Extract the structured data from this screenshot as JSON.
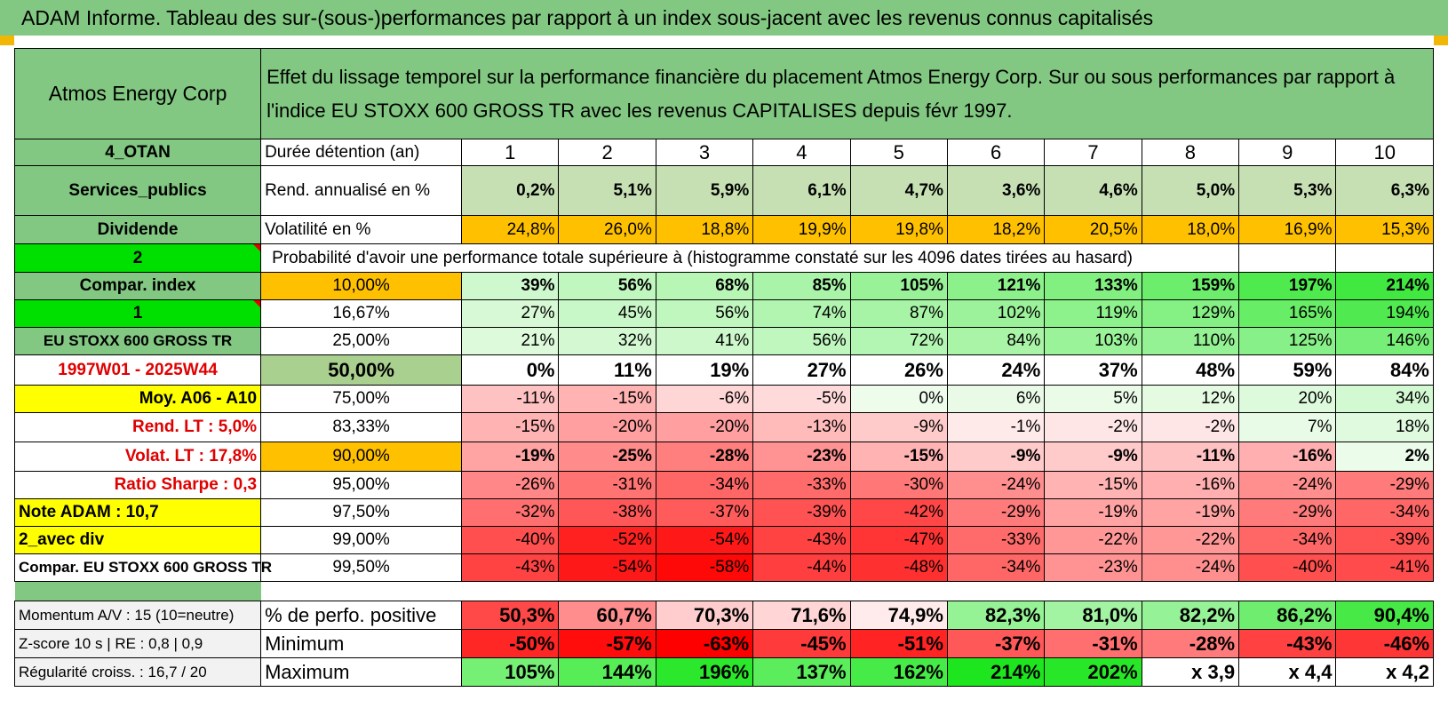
{
  "title": "ADAM Informe. Tableau des sur-(sous-)performances par rapport à un index sous-jacent avec les revenus connus capitalisés",
  "header": {
    "company": "Atmos Energy Corp",
    "description": "Effet du lissage temporel sur la performance financière du placement Atmos Energy Corp. Sur ou sous performances par rapport à l'indice EU STOXX 600 GROSS TR avec les revenus CAPITALISES depuis févr 1997."
  },
  "durations": {
    "side": "4_OTAN",
    "label": "Durée détention (an)",
    "values": [
      "1",
      "2",
      "3",
      "4",
      "5",
      "6",
      "7",
      "8",
      "9",
      "10"
    ]
  },
  "rendement": {
    "side": "Services_publics",
    "label": "Rend. annualisé en %",
    "values": [
      "0,2%",
      "5,1%",
      "5,9%",
      "6,1%",
      "4,7%",
      "3,6%",
      "4,6%",
      "5,0%",
      "5,3%",
      "6,3%"
    ]
  },
  "volatilite": {
    "side": "Dividende",
    "label": "Volatilité en %",
    "values": [
      "24,8%",
      "26,0%",
      "18,8%",
      "19,9%",
      "19,8%",
      "18,2%",
      "20,5%",
      "18,0%",
      "16,9%",
      "15,3%"
    ]
  },
  "probability": {
    "side": "2",
    "label": "Probabilité d'avoir une performance totale supérieure à (histogramme constaté sur les 4096 dates tirées au hasard)"
  },
  "perf_rows": [
    {
      "side": "Compar. index",
      "pct": "10,00%",
      "values": [
        "39%",
        "56%",
        "68%",
        "85%",
        "105%",
        "121%",
        "133%",
        "159%",
        "197%",
        "214%"
      ]
    },
    {
      "side": "1",
      "pct": "16,67%",
      "values": [
        "27%",
        "45%",
        "56%",
        "74%",
        "87%",
        "102%",
        "119%",
        "129%",
        "165%",
        "194%"
      ]
    },
    {
      "side": "EU STOXX 600 GROSS TR",
      "pct": "25,00%",
      "values": [
        "21%",
        "32%",
        "41%",
        "56%",
        "72%",
        "84%",
        "103%",
        "110%",
        "125%",
        "146%"
      ]
    },
    {
      "side": "1997W01 - 2025W44",
      "pct": "50,00%",
      "values": [
        "0%",
        "11%",
        "19%",
        "27%",
        "26%",
        "24%",
        "37%",
        "48%",
        "59%",
        "84%"
      ]
    },
    {
      "side": "Moy. A06 - A10",
      "pct": "75,00%",
      "values": [
        "-11%",
        "-15%",
        "-6%",
        "-5%",
        "0%",
        "6%",
        "5%",
        "12%",
        "20%",
        "34%"
      ]
    },
    {
      "side": "Rend. LT :    5,0%",
      "pct": "83,33%",
      "values": [
        "-15%",
        "-20%",
        "-20%",
        "-13%",
        "-9%",
        "-1%",
        "-2%",
        "-2%",
        "7%",
        "18%"
      ]
    },
    {
      "side": "Volat. LT :    17,8%",
      "pct": "90,00%",
      "values": [
        "-19%",
        "-25%",
        "-28%",
        "-23%",
        "-15%",
        "-9%",
        "-9%",
        "-11%",
        "-16%",
        "2%"
      ]
    },
    {
      "side": "Ratio Sharpe :     0,3",
      "pct": "95,00%",
      "values": [
        "-26%",
        "-31%",
        "-34%",
        "-33%",
        "-30%",
        "-24%",
        "-15%",
        "-16%",
        "-24%",
        "-29%"
      ]
    },
    {
      "side": "Note ADAM : 10,7",
      "pct": "97,50%",
      "values": [
        "-32%",
        "-38%",
        "-37%",
        "-39%",
        "-42%",
        "-29%",
        "-19%",
        "-19%",
        "-29%",
        "-34%"
      ]
    },
    {
      "side": "2_avec div",
      "pct": "99,00%",
      "values": [
        "-40%",
        "-52%",
        "-54%",
        "-43%",
        "-47%",
        "-33%",
        "-22%",
        "-22%",
        "-34%",
        "-39%"
      ]
    },
    {
      "side": "Compar. EU STOXX 600 GROSS TR",
      "pct": "99,50%",
      "values": [
        "-43%",
        "-54%",
        "-58%",
        "-44%",
        "-48%",
        "-34%",
        "-23%",
        "-24%",
        "-40%",
        "-41%"
      ]
    }
  ],
  "stats": [
    {
      "side": "Momentum A/V : 15 (10=neutre)",
      "label": "% de perfo. positive",
      "values": [
        "50,3%",
        "60,7%",
        "70,3%",
        "71,6%",
        "74,9%",
        "82,3%",
        "81,0%",
        "82,2%",
        "86,2%",
        "90,4%"
      ]
    },
    {
      "side": "Z-score 10 s | RE : 0,8 | 0,9",
      "label": "Minimum",
      "values": [
        "-50%",
        "-57%",
        "-63%",
        "-45%",
        "-51%",
        "-37%",
        "-31%",
        "-28%",
        "-43%",
        "-46%"
      ]
    },
    {
      "side": "Régularité croiss. : 16,7 / 20",
      "label": "Maximum",
      "values": [
        "105%",
        "144%",
        "196%",
        "137%",
        "162%",
        "214%",
        "202%",
        "x 3,9",
        "x 4,4",
        "x 4,2"
      ]
    }
  ],
  "colors": {
    "header_green": "#82c882",
    "bright_green": "#00e000",
    "yellow": "#ffff00",
    "orange": "#ffc000",
    "red_text": "#e00000"
  }
}
